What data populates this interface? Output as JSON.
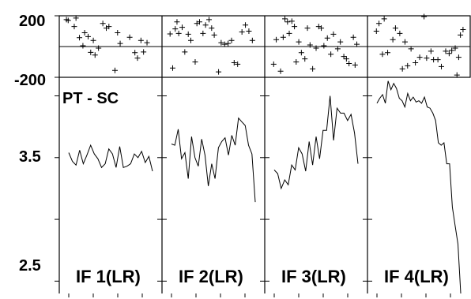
{
  "chart_data": {
    "type": "line",
    "layout": "4 panels side by side; each panel has a residual scatter strip on top and a line trace below",
    "residual_axis": {
      "ylim": [
        -200,
        200
      ],
      "tick_labels": [
        "200",
        "-200"
      ]
    },
    "main_axis": {
      "ylim": [
        2.4,
        4.15
      ],
      "tick_labels": [
        "3.5",
        "2.5"
      ],
      "tick_values": [
        3.5,
        2.5
      ]
    },
    "ylabel": "PT - SC",
    "panels": [
      {
        "label": "IF 1(LR)",
        "x": [
          0,
          1,
          2,
          3,
          4,
          5,
          6,
          7,
          8,
          9,
          10,
          11,
          12,
          13,
          14,
          15,
          16,
          17,
          18,
          19,
          20,
          21,
          22,
          23
        ],
        "values": [
          3.54,
          3.47,
          3.44,
          3.56,
          3.45,
          3.52,
          3.6,
          3.53,
          3.49,
          3.42,
          3.45,
          3.57,
          3.53,
          3.42,
          3.59,
          3.42,
          3.43,
          3.45,
          3.53,
          3.5,
          3.55,
          3.46,
          3.51,
          3.39
        ],
        "residuals": [
          [
            0.1,
            175
          ],
          [
            0.3,
            170
          ],
          [
            1.0,
            130
          ],
          [
            1.2,
            185
          ],
          [
            1.6,
            58
          ],
          [
            2.0,
            5
          ],
          [
            2.2,
            90
          ],
          [
            2.6,
            65
          ],
          [
            2.9,
            -38
          ],
          [
            3.2,
            40
          ],
          [
            3.4,
            -55
          ],
          [
            3.8,
            -10
          ],
          [
            4.3,
            150
          ],
          [
            4.7,
            120
          ],
          [
            5.0,
            130
          ],
          [
            5.7,
            -155
          ],
          [
            6.0,
            90
          ],
          [
            6.3,
            20
          ],
          [
            7.4,
            60
          ],
          [
            8.0,
            -40
          ],
          [
            8.3,
            -75
          ],
          [
            8.7,
            40
          ],
          [
            9.0,
            -35
          ],
          [
            9.4,
            25
          ]
        ]
      },
      {
        "label": "IF 2(LR)",
        "x": [
          0,
          1,
          2,
          3,
          4,
          5,
          6,
          7,
          8,
          9,
          10,
          11,
          12,
          13,
          14,
          15,
          16,
          17,
          18,
          19,
          20,
          21,
          22,
          23,
          24,
          25
        ],
        "values": [
          3.61,
          3.6,
          3.73,
          3.49,
          3.54,
          3.33,
          3.67,
          3.5,
          3.43,
          3.65,
          3.52,
          3.27,
          3.45,
          3.33,
          3.58,
          3.63,
          3.66,
          3.52,
          3.68,
          3.6,
          3.82,
          3.79,
          3.76,
          3.6,
          3.53,
          3.14
        ],
        "residuals": [
          [
            0.2,
            82
          ],
          [
            0.5,
            -140
          ],
          [
            0.8,
            115
          ],
          [
            1.0,
            160
          ],
          [
            1.2,
            85
          ],
          [
            1.6,
            125
          ],
          [
            1.9,
            -35
          ],
          [
            2.3,
            80
          ],
          [
            2.6,
            40
          ],
          [
            3.1,
            -100
          ],
          [
            3.3,
            150
          ],
          [
            3.6,
            160
          ],
          [
            4.0,
            85
          ],
          [
            4.3,
            140
          ],
          [
            4.7,
            175
          ],
          [
            5.0,
            120
          ],
          [
            5.3,
            75
          ],
          [
            5.8,
            -165
          ],
          [
            6.1,
            25
          ],
          [
            6.5,
            15
          ],
          [
            6.9,
            20
          ],
          [
            7.3,
            40
          ],
          [
            7.6,
            -105
          ],
          [
            8.0,
            -115
          ],
          [
            8.5,
            95
          ],
          [
            8.9,
            140
          ],
          [
            9.3,
            100
          ],
          [
            9.7,
            40
          ]
        ]
      },
      {
        "label": "IF 3(LR)",
        "x": [
          0,
          1,
          2,
          3,
          4,
          5,
          6,
          7,
          8,
          9,
          10,
          11,
          12,
          13,
          14,
          15,
          16,
          17,
          18,
          19,
          20,
          21,
          22,
          23,
          24
        ],
        "values": [
          3.4,
          3.37,
          3.25,
          3.32,
          3.28,
          3.44,
          3.4,
          3.58,
          3.53,
          3.39,
          3.63,
          3.44,
          3.67,
          3.49,
          3.72,
          3.72,
          4.0,
          3.64,
          3.9,
          3.86,
          3.86,
          3.8,
          3.85,
          3.7,
          3.45
        ],
        "residuals": [
          [
            0.3,
            -115
          ],
          [
            0.6,
            45
          ],
          [
            1.1,
            -160
          ],
          [
            1.4,
            60
          ],
          [
            1.6,
            180
          ],
          [
            1.9,
            160
          ],
          [
            2.1,
            85
          ],
          [
            2.4,
            165
          ],
          [
            2.7,
            130
          ],
          [
            2.9,
            -100
          ],
          [
            3.2,
            30
          ],
          [
            3.5,
            -40
          ],
          [
            3.9,
            -80
          ],
          [
            4.2,
            120
          ],
          [
            4.5,
            10
          ],
          [
            4.8,
            -145
          ],
          [
            5.2,
            -10
          ],
          [
            5.5,
            130
          ],
          [
            5.8,
            120
          ],
          [
            6.1,
            5
          ],
          [
            6.5,
            55
          ],
          [
            6.9,
            -50
          ],
          [
            7.2,
            80
          ],
          [
            7.7,
            -15
          ],
          [
            8.0,
            30
          ],
          [
            8.4,
            -65
          ],
          [
            8.7,
            -80
          ],
          [
            9.0,
            -110
          ],
          [
            9.5,
            60
          ],
          [
            9.7,
            -120
          ],
          [
            9.9,
            15
          ]
        ]
      },
      {
        "label": "IF 4(LR)",
        "x": [
          0,
          1,
          2,
          3,
          4,
          5,
          6,
          7,
          8,
          9,
          10,
          11,
          12,
          13,
          14,
          15,
          16,
          17,
          18,
          19,
          20,
          21,
          22,
          23,
          24,
          25,
          26,
          27,
          28,
          29,
          30
        ],
        "values": [
          3.94,
          3.98,
          4.01,
          3.94,
          4.12,
          4.05,
          4.1,
          4.06,
          3.98,
          3.96,
          3.91,
          4.02,
          3.96,
          3.99,
          3.95,
          3.96,
          3.94,
          3.99,
          3.91,
          3.9,
          3.86,
          3.8,
          3.62,
          3.6,
          3.62,
          3.45,
          3.45,
          3.1,
          2.95,
          2.8,
          2.4
        ],
        "residuals": [
          [
            0.3,
            100
          ],
          [
            0.6,
            150
          ],
          [
            1.0,
            -50
          ],
          [
            1.2,
            180
          ],
          [
            1.6,
            -40
          ],
          [
            2.2,
            45
          ],
          [
            2.5,
            120
          ],
          [
            3.0,
            85
          ],
          [
            3.3,
            -145
          ],
          [
            3.6,
            30
          ],
          [
            3.9,
            -125
          ],
          [
            4.3,
            -15
          ],
          [
            4.8,
            -105
          ],
          [
            5.3,
            -70
          ],
          [
            5.8,
            195
          ],
          [
            6.1,
            -75
          ],
          [
            6.6,
            -30
          ],
          [
            6.9,
            -85
          ],
          [
            7.4,
            -85
          ],
          [
            7.8,
            -130
          ],
          [
            8.3,
            -30
          ],
          [
            8.7,
            -45
          ],
          [
            9.0,
            -25
          ],
          [
            9.4,
            -10
          ],
          [
            9.6,
            -185
          ],
          [
            9.8,
            -70
          ],
          [
            10.0,
            75
          ],
          [
            10.3,
            110
          ]
        ]
      }
    ]
  }
}
